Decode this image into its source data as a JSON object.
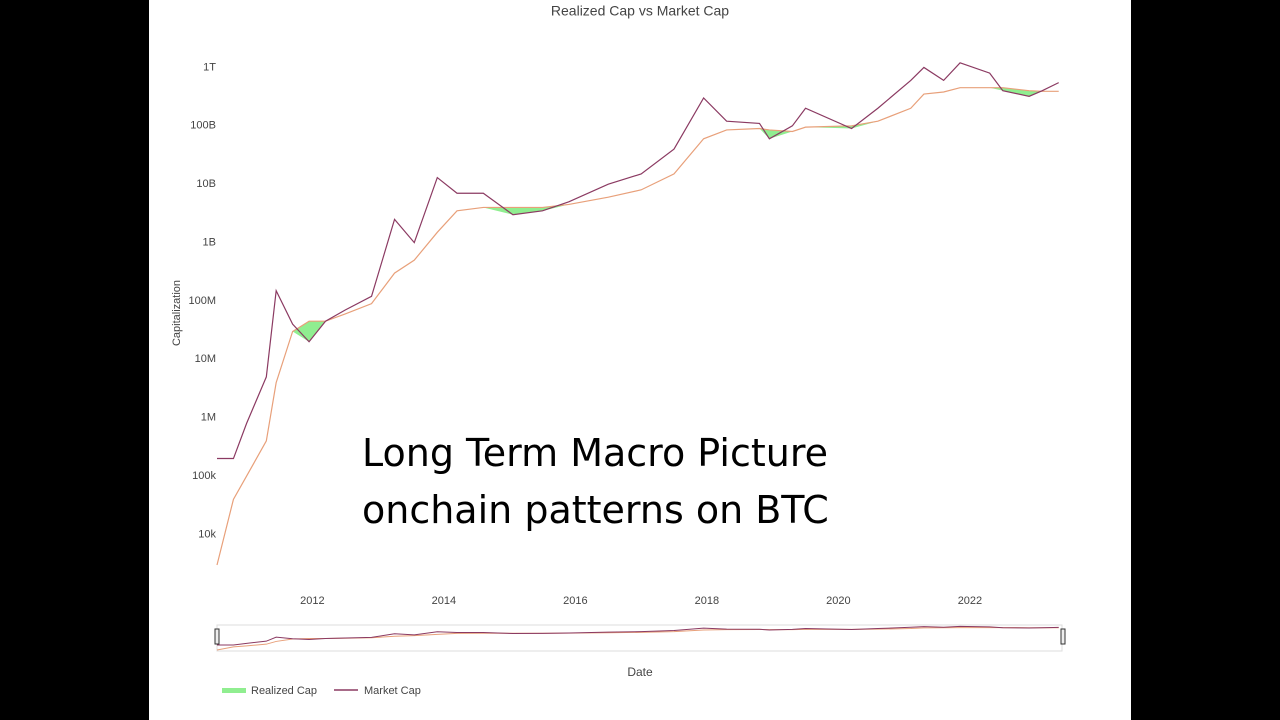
{
  "chart_data": {
    "type": "line",
    "title": "Realized Cap vs Market Cap",
    "y_label": "Capitalization",
    "x_label": "Date",
    "annotation": [
      "Long Term Macro Picture",
      "onchain patterns on BTC"
    ],
    "log_y": true,
    "x": [
      2010.55,
      2010.8,
      2011.0,
      2011.3,
      2011.45,
      2011.7,
      2011.95,
      2012.2,
      2012.5,
      2012.9,
      2013.25,
      2013.55,
      2013.9,
      2014.2,
      2014.6,
      2015.05,
      2015.5,
      2015.9,
      2016.5,
      2017.0,
      2017.5,
      2017.95,
      2018.3,
      2018.8,
      2018.95,
      2019.3,
      2019.5,
      2020.2,
      2020.6,
      2021.1,
      2021.3,
      2021.6,
      2021.85,
      2022.3,
      2022.5,
      2022.9,
      2023.1,
      2023.35
    ],
    "series": [
      {
        "name": "Realized Cap",
        "color": "#e8a07a",
        "fill_color": "#90ee90",
        "values": [
          3000,
          40000,
          100000,
          400000,
          4000000,
          30000000,
          45000000,
          45000000,
          60000000,
          90000000,
          300000000,
          500000000,
          1500000000,
          3500000000,
          4000000000,
          4000000000,
          4000000000,
          4500000000,
          6000000000,
          8000000000,
          15000000000,
          60000000000,
          85000000000,
          90000000000,
          85000000000,
          80000000000,
          95000000000,
          100000000000,
          120000000000,
          200000000000,
          350000000000,
          380000000000,
          450000000000,
          450000000000,
          450000000000,
          400000000000,
          390000000000,
          390000000000
        ]
      },
      {
        "name": "Market Cap",
        "color": "#8b3a62",
        "values": [
          200000,
          200000,
          800000,
          5000000,
          150000000,
          40000000,
          20000000,
          45000000,
          70000000,
          120000000,
          2500000000,
          1000000000,
          13000000000,
          7000000000,
          7000000000,
          3000000000,
          3500000000,
          5000000000,
          10000000000,
          15000000000,
          40000000000,
          300000000000,
          120000000000,
          110000000000,
          60000000000,
          100000000000,
          200000000000,
          90000000000,
          200000000000,
          600000000000,
          1000000000000,
          600000000000,
          1200000000000,
          800000000000,
          400000000000,
          320000000000,
          400000000000,
          550000000000
        ]
      }
    ],
    "xlim": [
      2010.55,
      2023.4
    ],
    "xticks": [
      2012,
      2014,
      2016,
      2018,
      2020,
      2022
    ],
    "ylim": [
      3000,
      1700000000000
    ],
    "yticks": [
      {
        "value": 10000,
        "label": "10k"
      },
      {
        "value": 100000,
        "label": "100k"
      },
      {
        "value": 1000000,
        "label": "1M"
      },
      {
        "value": 10000000,
        "label": "10M"
      },
      {
        "value": 100000000,
        "label": "100M"
      },
      {
        "value": 1000000000,
        "label": "1B"
      },
      {
        "value": 10000000000,
        "label": "10B"
      },
      {
        "value": 100000000000,
        "label": "100B"
      },
      {
        "value": 1000000000000,
        "label": "1T"
      }
    ]
  }
}
